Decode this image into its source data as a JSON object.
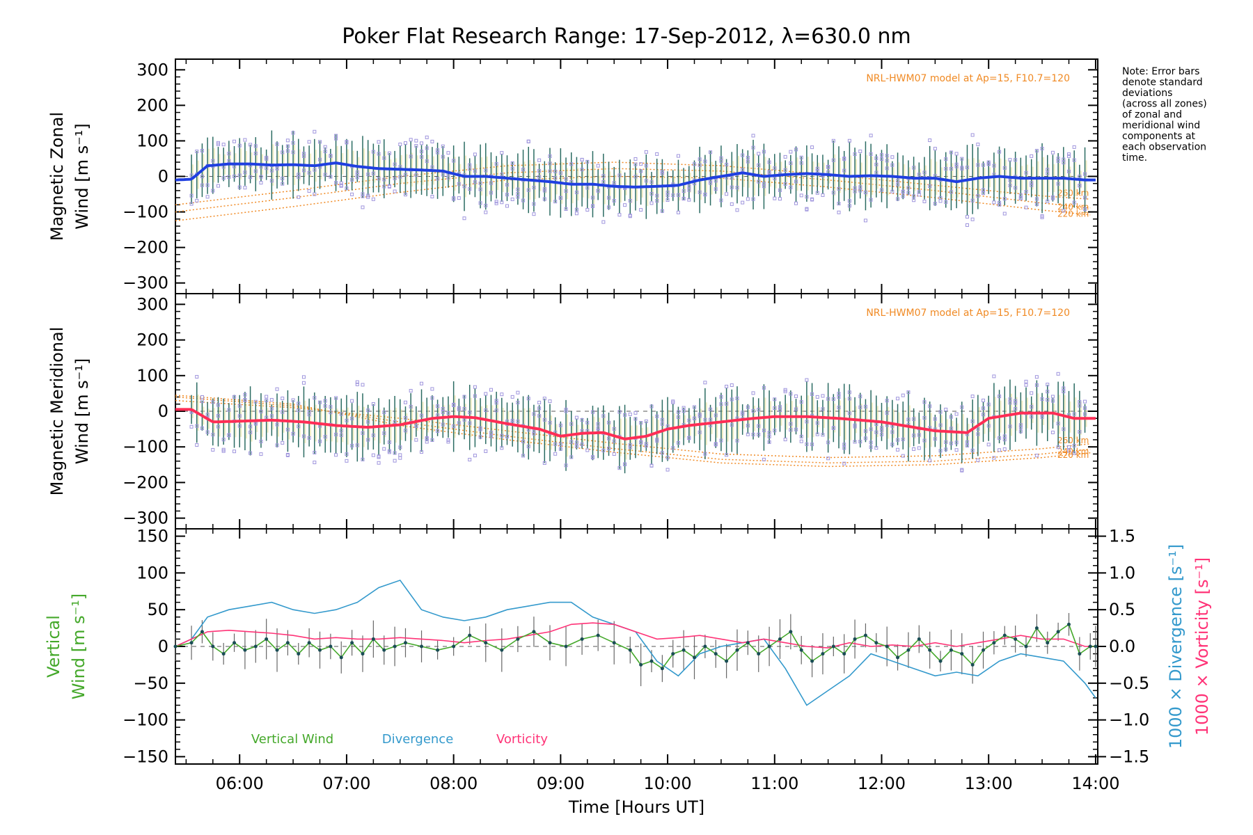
{
  "title": "Poker Flat Research Range: 17-Sep-2012, λ=630.0 nm",
  "note_lines": [
    "Note: Error bars",
    "denote standard",
    "deviations",
    "(across all zones)",
    "of zonal and",
    "meridional wind",
    "components at",
    "each observation",
    "time."
  ],
  "colors": {
    "zonal": "#1f3fe0",
    "meridional": "#ff2d55",
    "vertical": "#44a82a",
    "divergence": "#3399cc",
    "vorticity": "#ff3377",
    "model": "#f08a24",
    "scatter": "#9f95dd",
    "errbar": "#2a6b62"
  },
  "chart_data": [
    {
      "type": "line",
      "panel": "zonal",
      "ylabel_line1": "Magnetic Zonal",
      "ylabel_line2": "Wind [m s⁻¹]",
      "xlim": [
        5.4,
        14.02
      ],
      "ylim": [
        -330,
        330
      ],
      "yticks": [
        "300",
        "200",
        "100",
        "0",
        "−100",
        "−200",
        "−300"
      ],
      "model_label": "NRL-HWM07 model at Ap=15, F10.7=120",
      "model_heights": [
        "260 km",
        "240 km",
        "220 km"
      ],
      "series": [
        {
          "x": [
            5.4,
            5.55,
            5.7,
            5.9,
            6.1,
            6.3,
            6.5,
            6.7,
            6.9,
            7.1,
            7.3,
            7.5,
            7.7,
            7.9,
            8.1,
            8.3,
            8.5,
            8.7,
            8.9,
            9.1,
            9.3,
            9.5,
            9.7,
            9.9,
            10.1,
            10.3,
            10.5,
            10.7,
            10.9,
            11.1,
            11.3,
            11.5,
            11.7,
            11.9,
            12.1,
            12.3,
            12.5,
            12.7,
            12.9,
            13.1,
            13.3,
            13.5,
            13.7,
            13.9,
            14.0
          ],
          "y": [
            -10,
            -8,
            30,
            35,
            35,
            32,
            33,
            30,
            38,
            28,
            22,
            20,
            18,
            15,
            0,
            0,
            -5,
            -10,
            -15,
            -22,
            -22,
            -28,
            -30,
            -28,
            -25,
            -10,
            0,
            10,
            0,
            5,
            8,
            5,
            0,
            2,
            0,
            -5,
            -5,
            -15,
            -5,
            0,
            -5,
            -5,
            -5,
            -10,
            -10
          ]
        }
      ],
      "model": [
        {
          "name": "260 km",
          "x": [
            5.4,
            6.5,
            7.5,
            8.5,
            9.5,
            10.5,
            11.5,
            12.5,
            13.5,
            14.0
          ],
          "y": [
            -80,
            -40,
            0,
            30,
            40,
            30,
            5,
            -25,
            -55,
            -65
          ]
        },
        {
          "name": "240 km",
          "x": [
            5.4,
            6.5,
            7.5,
            8.5,
            9.5,
            10.5,
            11.5,
            12.5,
            13.5,
            14.0
          ],
          "y": [
            -100,
            -60,
            -20,
            10,
            22,
            15,
            -10,
            -40,
            -75,
            -90
          ]
        },
        {
          "name": "220 km",
          "x": [
            5.4,
            6.5,
            7.5,
            8.5,
            9.5,
            10.5,
            11.5,
            12.5,
            13.5,
            14.0
          ],
          "y": [
            -125,
            -85,
            -45,
            -10,
            0,
            -5,
            -30,
            -60,
            -95,
            -110
          ]
        }
      ]
    },
    {
      "type": "line",
      "panel": "meridional",
      "ylabel_line1": "Magnetic Meridional",
      "ylabel_line2": "Wind [m s⁻¹]",
      "xlim": [
        5.4,
        14.02
      ],
      "ylim": [
        -330,
        330
      ],
      "yticks": [
        "300",
        "200",
        "100",
        "0",
        "−100",
        "−200",
        "−300"
      ],
      "model_label": "NRL-HWM07 model at Ap=15, F10.7=120",
      "model_heights": [
        "260 km",
        "240 km",
        "220 km"
      ],
      "series": [
        {
          "x": [
            5.4,
            5.55,
            5.75,
            6.0,
            6.3,
            6.6,
            6.9,
            7.2,
            7.5,
            7.8,
            8.0,
            8.2,
            8.5,
            8.8,
            9.0,
            9.2,
            9.4,
            9.6,
            9.8,
            10.0,
            10.2,
            10.5,
            10.8,
            11.0,
            11.3,
            11.6,
            11.8,
            12.0,
            12.2,
            12.5,
            12.8,
            13.0,
            13.3,
            13.6,
            13.8,
            14.0
          ],
          "y": [
            5,
            5,
            -30,
            -28,
            -25,
            -30,
            -40,
            -45,
            -38,
            -20,
            -15,
            -18,
            -35,
            -50,
            -70,
            -62,
            -60,
            -78,
            -70,
            -50,
            -40,
            -30,
            -20,
            -15,
            -15,
            -20,
            -25,
            -30,
            -40,
            -55,
            -60,
            -20,
            -5,
            -5,
            -20,
            -20
          ]
        }
      ],
      "model": [
        {
          "name": "260 km",
          "x": [
            5.4,
            6.5,
            7.5,
            8.5,
            9.5,
            10.5,
            11.5,
            12.5,
            13.5,
            14.0
          ],
          "y": [
            30,
            10,
            -20,
            -55,
            -90,
            -120,
            -130,
            -125,
            -105,
            -90
          ]
        },
        {
          "name": "240 km",
          "x": [
            5.4,
            6.5,
            7.5,
            8.5,
            9.5,
            10.5,
            11.5,
            12.5,
            13.5,
            14.0
          ],
          "y": [
            40,
            15,
            -30,
            -70,
            -105,
            -135,
            -145,
            -140,
            -120,
            -105
          ]
        },
        {
          "name": "220 km",
          "x": [
            5.4,
            6.5,
            7.5,
            8.5,
            9.5,
            10.5,
            11.5,
            12.5,
            13.5,
            14.0
          ],
          "y": [
            45,
            20,
            -40,
            -80,
            -115,
            -145,
            -155,
            -150,
            -130,
            -115
          ]
        }
      ]
    },
    {
      "type": "line",
      "panel": "vertical",
      "ylabel_line1": "Vertical",
      "ylabel_line2": "Wind [m s⁻¹]",
      "ylabel_right1": "1000 × Divergence [s⁻¹]",
      "ylabel_right2": "1000 × Vorticity [s⁻¹]",
      "xlabel": "Time [Hours UT]",
      "xlim": [
        5.4,
        14.02
      ],
      "ylim": [
        -160,
        160
      ],
      "y2lim": [
        -1.6,
        1.6
      ],
      "yticks": [
        "150",
        "100",
        "50",
        "0",
        "−50",
        "−100",
        "−150"
      ],
      "y2ticks": [
        "1.5",
        "1.0",
        "0.5",
        "0.0",
        "−0.5",
        "−1.0",
        "−1.5"
      ],
      "xticks": [
        "06:00",
        "07:00",
        "08:00",
        "09:00",
        "10:00",
        "11:00",
        "12:00",
        "13:00",
        "14:00"
      ],
      "legend": [
        "Vertical Wind",
        "Divergence",
        "Vorticity"
      ],
      "series": [
        {
          "name": "Vertical Wind",
          "x": [
            5.4,
            5.55,
            5.65,
            5.75,
            5.85,
            5.95,
            6.05,
            6.15,
            6.25,
            6.35,
            6.45,
            6.55,
            6.65,
            6.75,
            6.85,
            6.95,
            7.05,
            7.15,
            7.25,
            7.35,
            7.45,
            7.55,
            7.7,
            7.85,
            8.0,
            8.15,
            8.3,
            8.45,
            8.6,
            8.75,
            8.9,
            9.05,
            9.2,
            9.35,
            9.5,
            9.65,
            9.75,
            9.85,
            9.95,
            10.05,
            10.15,
            10.25,
            10.35,
            10.45,
            10.55,
            10.65,
            10.75,
            10.85,
            10.95,
            11.05,
            11.15,
            11.25,
            11.35,
            11.45,
            11.55,
            11.65,
            11.75,
            11.85,
            11.95,
            12.05,
            12.15,
            12.25,
            12.35,
            12.45,
            12.55,
            12.65,
            12.75,
            12.85,
            12.95,
            13.05,
            13.15,
            13.25,
            13.35,
            13.45,
            13.55,
            13.65,
            13.75,
            13.85,
            13.95,
            14.0
          ],
          "y": [
            0,
            5,
            20,
            0,
            -10,
            5,
            -5,
            0,
            10,
            -5,
            5,
            -10,
            5,
            -5,
            0,
            -15,
            5,
            -10,
            10,
            -5,
            0,
            5,
            0,
            -5,
            0,
            15,
            5,
            -5,
            10,
            20,
            5,
            0,
            10,
            15,
            5,
            -5,
            -25,
            -20,
            -30,
            -10,
            -5,
            -15,
            0,
            -10,
            -20,
            -5,
            5,
            -10,
            0,
            10,
            20,
            -5,
            -20,
            -10,
            0,
            -10,
            10,
            15,
            5,
            0,
            -15,
            -5,
            10,
            -5,
            -20,
            -5,
            -10,
            -25,
            -5,
            5,
            15,
            10,
            0,
            25,
            5,
            20,
            30,
            -10,
            0,
            0
          ]
        },
        {
          "name": "Divergence",
          "x": [
            5.4,
            5.55,
            5.7,
            5.9,
            6.1,
            6.3,
            6.5,
            6.7,
            6.9,
            7.1,
            7.3,
            7.5,
            7.7,
            7.9,
            8.1,
            8.3,
            8.5,
            8.7,
            8.9,
            9.1,
            9.3,
            9.5,
            9.7,
            9.9,
            10.1,
            10.3,
            10.5,
            10.7,
            10.9,
            11.1,
            11.3,
            11.5,
            11.7,
            11.9,
            12.1,
            12.3,
            12.5,
            12.7,
            12.9,
            13.1,
            13.3,
            13.5,
            13.7,
            13.9,
            14.0
          ],
          "y": [
            0.0,
            0.1,
            0.4,
            0.5,
            0.55,
            0.6,
            0.5,
            0.45,
            0.5,
            0.6,
            0.8,
            0.9,
            0.5,
            0.4,
            0.35,
            0.4,
            0.5,
            0.55,
            0.6,
            0.6,
            0.4,
            0.3,
            0.2,
            -0.2,
            -0.4,
            -0.1,
            0.0,
            0.05,
            0.1,
            -0.3,
            -0.8,
            -0.6,
            -0.4,
            -0.1,
            -0.2,
            -0.3,
            -0.4,
            -0.35,
            -0.4,
            -0.2,
            -0.1,
            -0.15,
            -0.2,
            -0.5,
            -0.7
          ]
        },
        {
          "name": "Vorticity",
          "x": [
            5.4,
            5.55,
            5.7,
            5.9,
            6.1,
            6.3,
            6.5,
            6.7,
            6.9,
            7.1,
            7.3,
            7.5,
            7.7,
            7.9,
            8.1,
            8.3,
            8.5,
            8.7,
            8.9,
            9.1,
            9.3,
            9.5,
            9.7,
            9.9,
            10.1,
            10.3,
            10.5,
            10.7,
            10.9,
            11.1,
            11.3,
            11.5,
            11.7,
            11.9,
            12.1,
            12.3,
            12.5,
            12.7,
            12.9,
            13.1,
            13.3,
            13.5,
            13.7,
            13.9,
            14.0
          ],
          "y": [
            0.0,
            0.1,
            0.2,
            0.22,
            0.2,
            0.18,
            0.15,
            0.1,
            0.12,
            0.1,
            0.1,
            0.12,
            0.1,
            0.08,
            0.05,
            0.08,
            0.1,
            0.15,
            0.2,
            0.3,
            0.32,
            0.3,
            0.2,
            0.1,
            0.12,
            0.15,
            0.1,
            0.05,
            0.1,
            0.05,
            0.0,
            -0.02,
            0.05,
            0.0,
            0.02,
            0.0,
            0.05,
            0.0,
            0.05,
            0.1,
            0.15,
            0.1,
            0.1,
            0.0,
            0.0
          ]
        }
      ]
    }
  ]
}
